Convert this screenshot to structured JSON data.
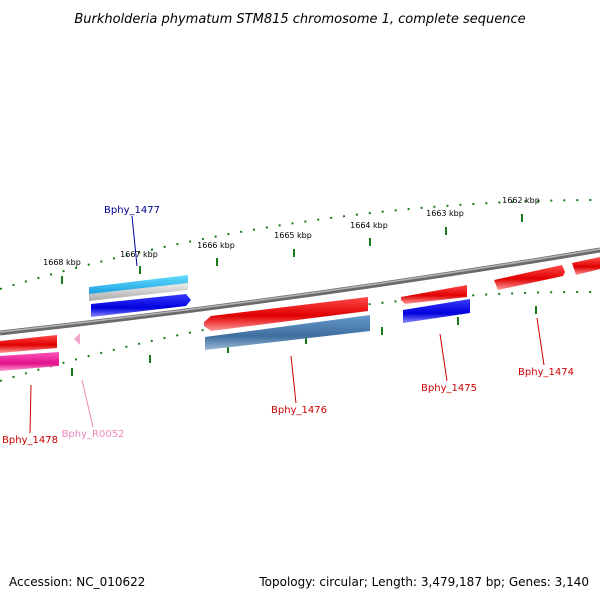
{
  "title": "Burkholderia phymatum STM815 chromosome 1, complete sequence",
  "ticks": [
    {
      "kbp": 1662,
      "label": "1662 kbp"
    },
    {
      "kbp": 1663,
      "label": "1663 kbp"
    },
    {
      "kbp": 1664,
      "label": "1664 kbp"
    },
    {
      "kbp": 1665,
      "label": "1665 kbp"
    },
    {
      "kbp": 1666,
      "label": "1666 kbp"
    },
    {
      "kbp": 1667,
      "label": "1667 kbp"
    },
    {
      "kbp": 1668,
      "label": "1668 kbp"
    }
  ],
  "genes": [
    {
      "name": "Bphy_1474",
      "color": "#cc0000"
    },
    {
      "name": "Bphy_1475",
      "color": "#cc0000"
    },
    {
      "name": "Bphy_1476",
      "color": "#cc0000"
    },
    {
      "name": "Bphy_1477",
      "color": "#000099"
    },
    {
      "name": "Bphy_1478",
      "color": "#cc0000"
    },
    {
      "name": "Bphy_R0052",
      "color": "#ee88bb"
    }
  ],
  "colors": {
    "backbone": "#808080",
    "ticks": "#1a7a1a",
    "forward_cds": "#ee1111",
    "reverse_cds": "#1111dd",
    "highlight_cds": "#4477aa",
    "rna": "#ee2299",
    "cyan_feature": "#22bbee"
  },
  "footer": {
    "accession": "Accession: NC_010622",
    "topology": "Topology: circular; Length: 3,479,187 bp; Genes: 3,140"
  }
}
